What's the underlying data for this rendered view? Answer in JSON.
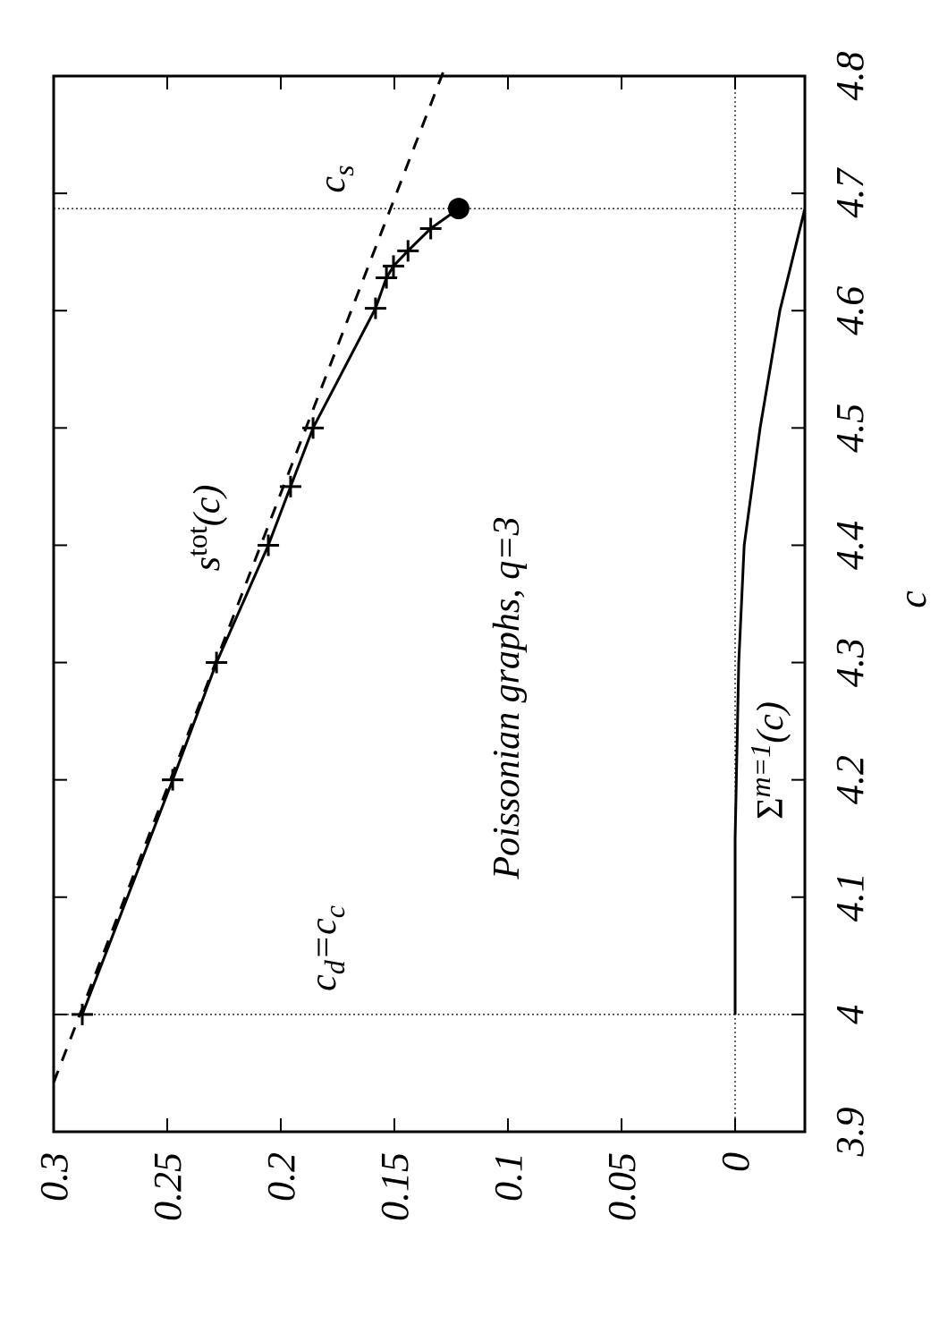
{
  "chart_data": {
    "type": "line",
    "xlabel": "c",
    "xlim": [
      3.9,
      4.8
    ],
    "xticks": [
      3.9,
      4,
      4.1,
      4.2,
      4.3,
      4.4,
      4.5,
      4.6,
      4.7,
      4.8
    ],
    "ylim": [
      -0.0307,
      0.3
    ],
    "yticks": [
      0,
      0.05,
      0.1,
      0.15,
      0.2,
      0.25,
      0.3
    ],
    "vlines": [
      4,
      4.687
    ],
    "hlines": [
      0
    ],
    "series": [
      {
        "style": "solid",
        "color": "#000000",
        "x": [
          4.0,
          4.2,
          4.3,
          4.4,
          4.45,
          4.5,
          4.602,
          4.628,
          4.638,
          4.651,
          4.67,
          4.687
        ],
        "values": [
          0.2874,
          0.2476,
          0.2283,
          0.2055,
          0.1957,
          0.1858,
          0.1583,
          0.1535,
          0.1504,
          0.144,
          0.134,
          0.1217
        ],
        "markers": [
          "+",
          "+",
          "+",
          "+",
          "+",
          "+",
          "+",
          "+",
          "+",
          "+",
          "+",
          "dot"
        ]
      },
      {
        "style": "dashed",
        "color": "#000000",
        "x": [
          3.942,
          4.806
        ],
        "values": [
          0.3,
          0.128
        ]
      },
      {
        "style": "solid",
        "color": "#000000",
        "x": [
          4.0,
          4.15,
          4.3,
          4.4,
          4.5,
          4.6,
          4.687
        ],
        "values": [
          0,
          0,
          -0.0016,
          -0.004,
          -0.011,
          -0.0197,
          -0.0307
        ]
      }
    ],
    "annotations": [
      {
        "parts": [
          {
            "text": "c"
          },
          {
            "text": "s",
            "script": "sub"
          }
        ]
      },
      {
        "parts": [
          {
            "text": "s"
          },
          {
            "text": "tot",
            "script": "sup",
            "upright": true
          },
          {
            "text": "(c)"
          }
        ]
      },
      {
        "parts": [
          {
            "text": "c"
          },
          {
            "text": "d",
            "script": "sub"
          },
          {
            "text": "=c"
          },
          {
            "text": "c",
            "script": "sub"
          }
        ]
      },
      {
        "parts": [
          {
            "text": "Poissonian graphs, q=3"
          }
        ]
      },
      {
        "parts": [
          {
            "text": "Σ",
            "upright": true
          },
          {
            "text": "m=1",
            "script": "sup"
          },
          {
            "text": "(c)"
          }
        ]
      }
    ]
  }
}
